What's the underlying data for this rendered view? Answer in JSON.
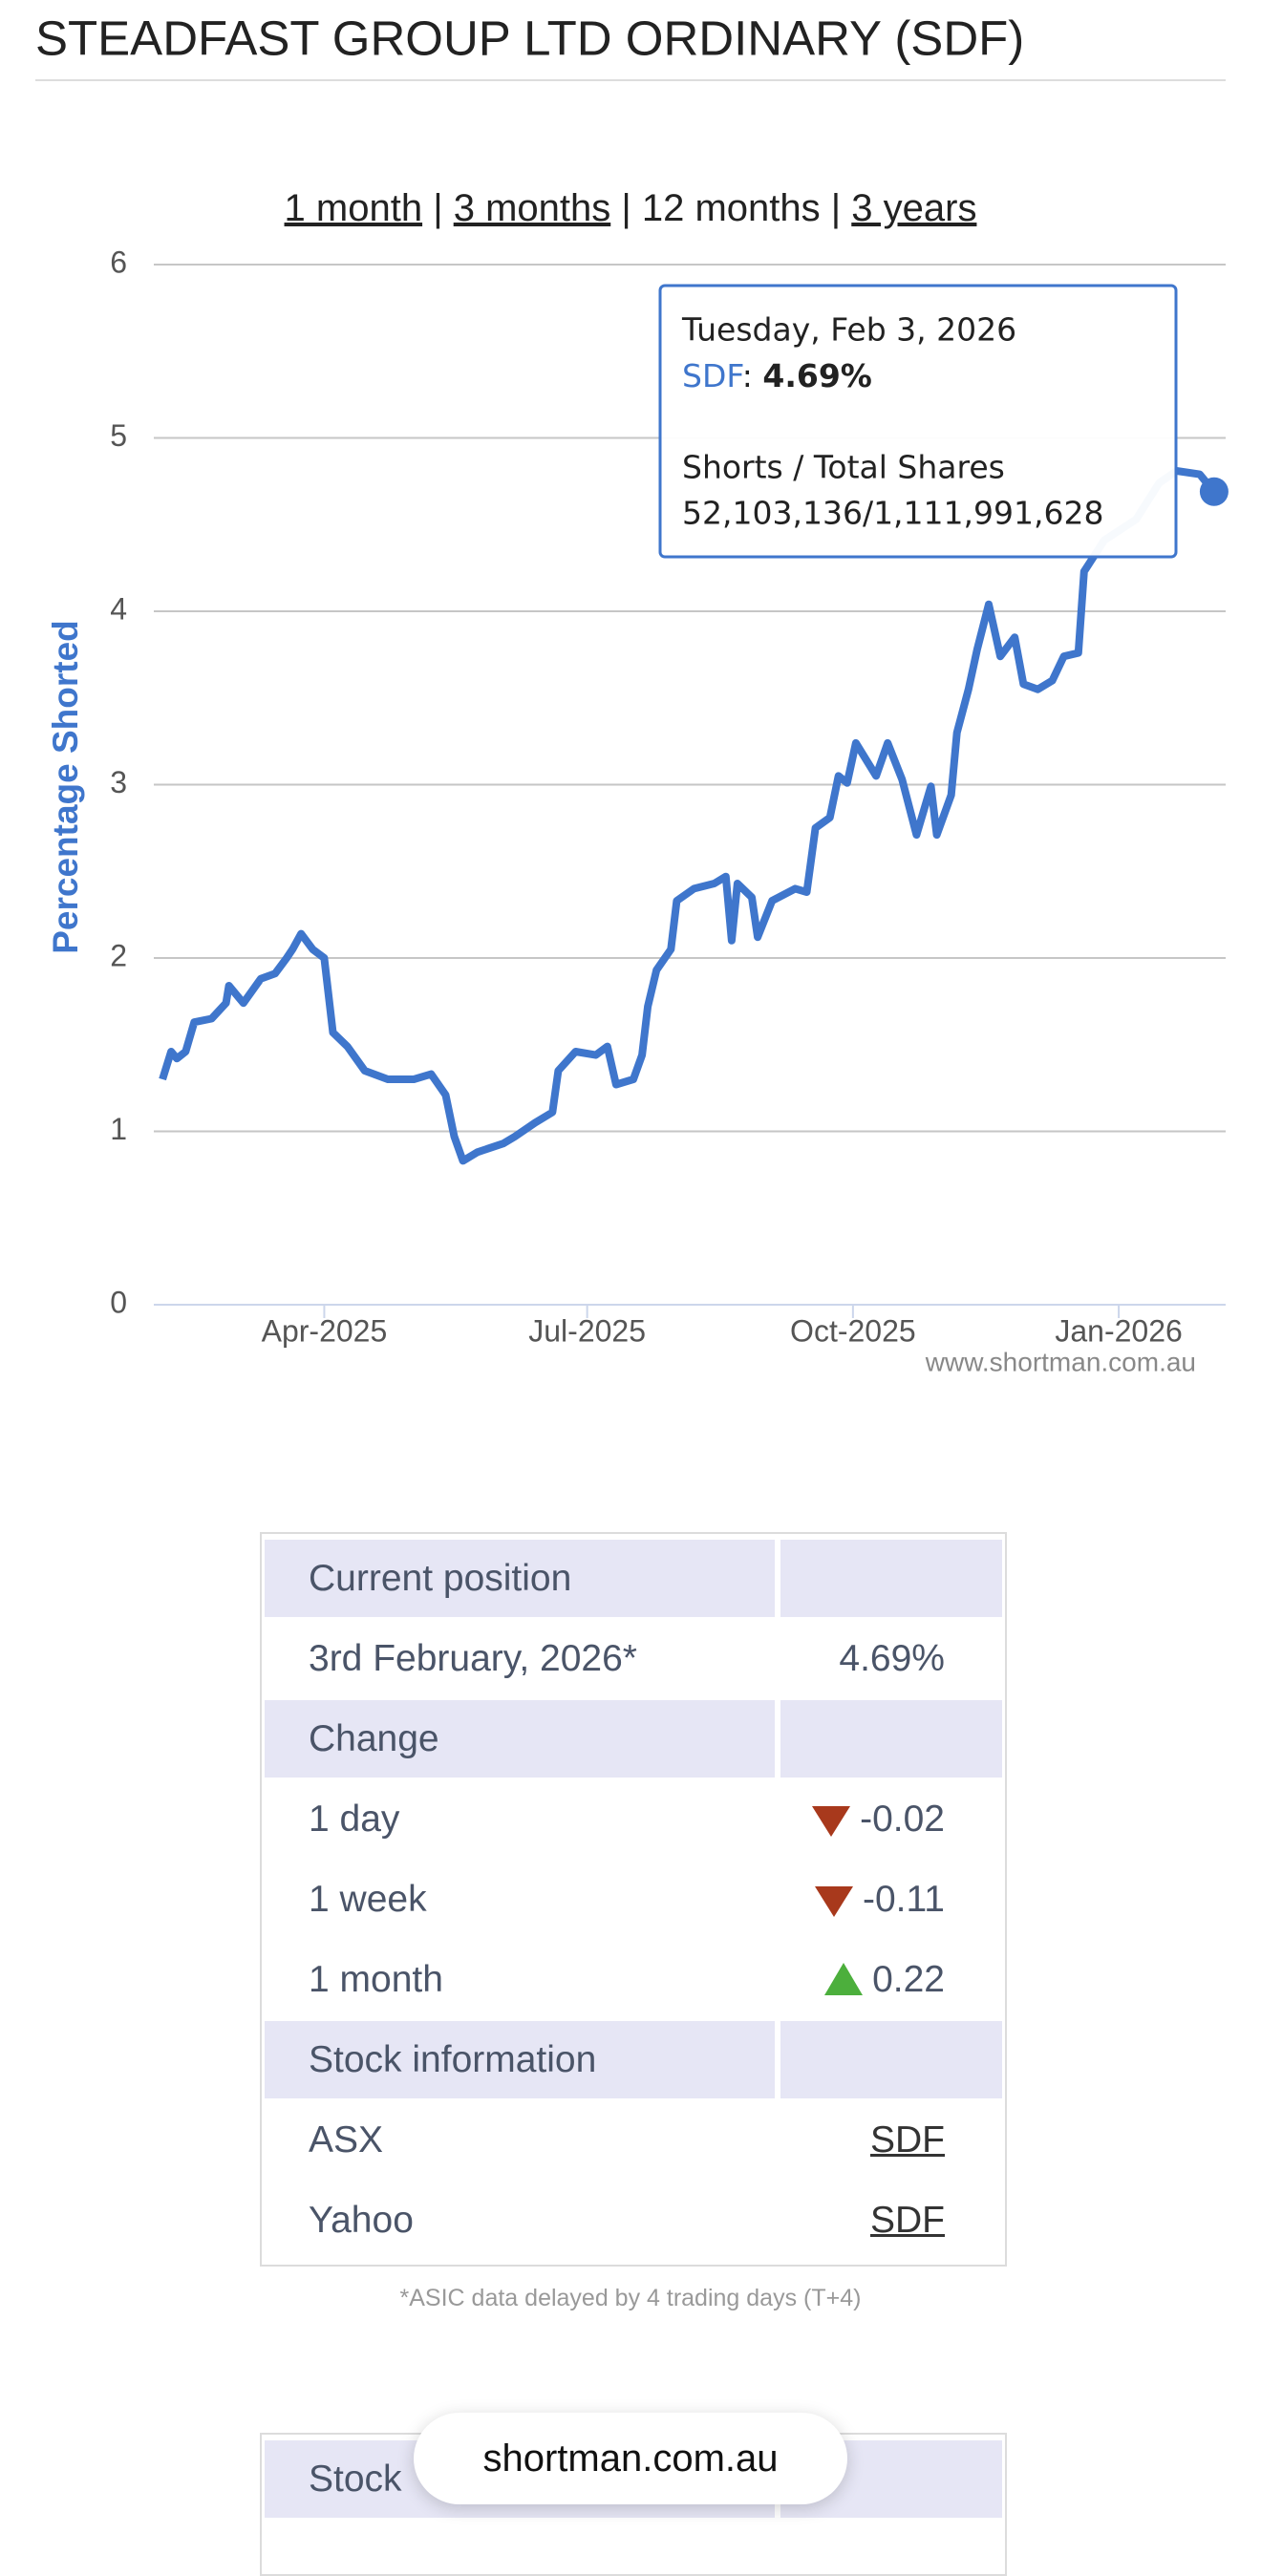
{
  "header": {
    "title": "STEADFAST GROUP LTD ORDINARY (SDF)"
  },
  "range_selector": {
    "options": [
      {
        "label": "1 month",
        "active": false
      },
      {
        "label": "3 months",
        "active": false
      },
      {
        "label": "12 months",
        "active": true
      },
      {
        "label": "3 years",
        "active": false
      }
    ]
  },
  "chart_data": {
    "type": "line",
    "ylabel": "Percentage Shorted",
    "series": [
      {
        "name": "SDF",
        "color": "#3f76cc",
        "x": [
          "2025-02-04",
          "2025-02-07",
          "2025-02-09",
          "2025-02-12",
          "2025-02-15",
          "2025-02-21",
          "2025-02-26",
          "2025-02-27",
          "2025-03-04",
          "2025-03-10",
          "2025-03-15",
          "2025-03-19",
          "2025-03-21",
          "2025-03-24",
          "2025-03-28",
          "2025-04-01",
          "2025-04-04",
          "2025-04-09",
          "2025-04-15",
          "2025-04-23",
          "2025-05-02",
          "2025-05-08",
          "2025-05-13",
          "2025-05-16",
          "2025-05-19",
          "2025-05-24",
          "2025-06-02",
          "2025-06-06",
          "2025-06-13",
          "2025-06-19",
          "2025-06-21",
          "2025-06-27",
          "2025-07-04",
          "2025-07-08",
          "2025-07-11",
          "2025-07-17",
          "2025-07-20",
          "2025-07-22",
          "2025-07-25",
          "2025-07-30",
          "2025-08-01",
          "2025-08-07",
          "2025-08-14",
          "2025-08-18",
          "2025-08-20",
          "2025-08-22",
          "2025-08-27",
          "2025-08-29",
          "2025-09-03",
          "2025-09-11",
          "2025-09-15",
          "2025-09-18",
          "2025-09-23",
          "2025-09-26",
          "2025-09-29",
          "2025-10-02",
          "2025-10-09",
          "2025-10-13",
          "2025-10-18",
          "2025-10-23",
          "2025-10-28",
          "2025-10-30",
          "2025-11-04",
          "2025-11-06",
          "2025-11-10",
          "2025-11-13",
          "2025-11-17",
          "2025-11-21",
          "2025-11-26",
          "2025-11-29",
          "2025-12-04",
          "2025-12-09",
          "2025-12-13",
          "2025-12-18",
          "2025-12-20",
          "2025-12-27",
          "2026-01-07",
          "2026-01-15",
          "2026-01-21",
          "2026-01-29",
          "2026-02-03"
        ],
        "values": [
          1.3,
          1.46,
          1.42,
          1.46,
          1.63,
          1.65,
          1.74,
          1.84,
          1.74,
          1.88,
          1.91,
          2.0,
          2.05,
          2.14,
          2.05,
          2.0,
          1.57,
          1.49,
          1.35,
          1.3,
          1.3,
          1.33,
          1.21,
          0.97,
          0.83,
          0.88,
          0.93,
          0.97,
          1.05,
          1.11,
          1.35,
          1.46,
          1.44,
          1.49,
          1.27,
          1.3,
          1.44,
          1.72,
          1.93,
          2.05,
          2.33,
          2.4,
          2.43,
          2.47,
          2.1,
          2.43,
          2.35,
          2.12,
          2.33,
          2.4,
          2.38,
          2.75,
          2.81,
          3.05,
          3.01,
          3.24,
          3.05,
          3.24,
          3.03,
          2.71,
          2.99,
          2.71,
          2.94,
          3.3,
          3.55,
          3.78,
          4.04,
          3.74,
          3.85,
          3.58,
          3.55,
          3.6,
          3.74,
          3.76,
          4.23,
          4.41,
          4.53,
          4.74,
          4.81,
          4.79,
          4.69
        ]
      }
    ],
    "xlim": [
      "2025-02-01",
      "2026-02-07"
    ],
    "xticks": [
      {
        "value": "2025-04-01",
        "label": "Apr-2025"
      },
      {
        "value": "2025-07-01",
        "label": "Jul-2025"
      },
      {
        "value": "2025-10-01",
        "label": "Oct-2025"
      },
      {
        "value": "2026-01-01",
        "label": "Jan-2026"
      }
    ],
    "ylim": [
      0,
      6
    ],
    "yticks": [
      0,
      1,
      2,
      3,
      4,
      5,
      6
    ],
    "grid": true,
    "tooltip": {
      "date": "Tuesday, Feb 3, 2026",
      "value_label": "4.69%",
      "detail_label": "Shorts / Total Shares",
      "detail": "52,103,136/1,111,991,628"
    },
    "credit": "www.shortman.com.au"
  },
  "table": {
    "sections": [
      {
        "title": "Current position",
        "rows": [
          {
            "label": "3rd February, 2026*",
            "value": "4.69%"
          }
        ]
      },
      {
        "title": "Change",
        "rows": [
          {
            "label": "1 day",
            "value": "-0.02",
            "direction": "down"
          },
          {
            "label": "1 week",
            "value": "-0.11",
            "direction": "down"
          },
          {
            "label": "1 month",
            "value": "0.22",
            "direction": "up"
          }
        ]
      },
      {
        "title": "Stock information",
        "rows": [
          {
            "label": "ASX",
            "value": "SDF",
            "link": true
          },
          {
            "label": "Yahoo",
            "value": "SDF",
            "link": true
          }
        ]
      }
    ],
    "footnote": "*ASIC data delayed by 4 trading days (T+4)"
  },
  "next_table": {
    "title": "Stock"
  },
  "badge": "shortman.com.au"
}
